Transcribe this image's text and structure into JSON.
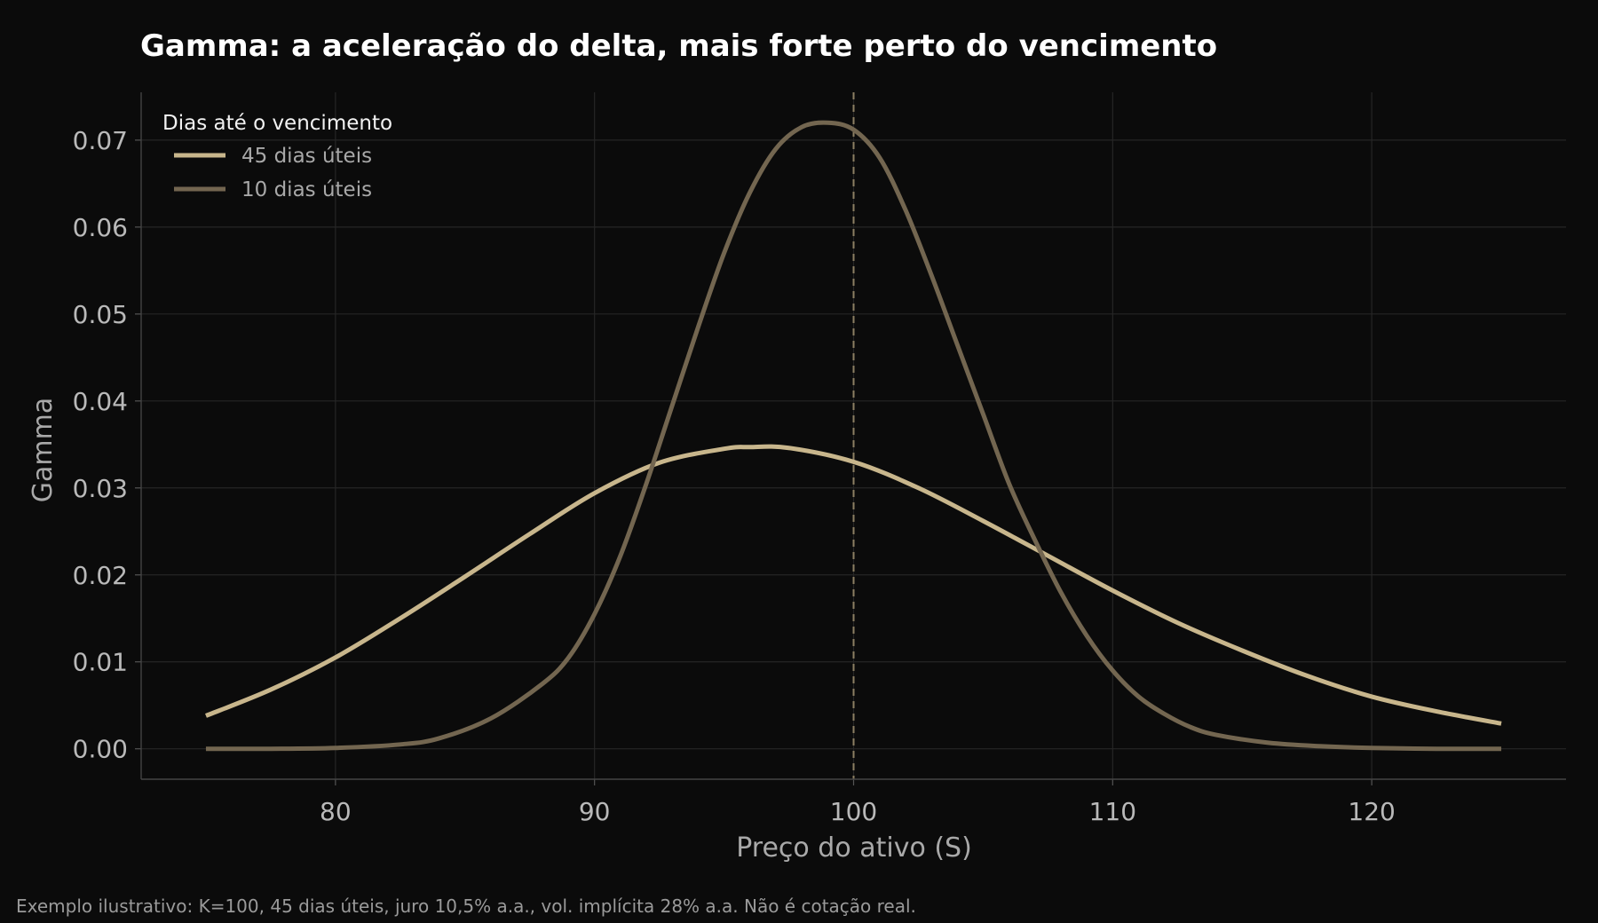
{
  "chart_data": {
    "type": "line",
    "title": "Gamma: a aceleração do delta, mais forte perto do vencimento",
    "xlabel": "Preço do ativo (S)",
    "ylabel": "Gamma",
    "xlim": [
      72.5,
      127.5
    ],
    "ylim": [
      -0.0035,
      0.0755
    ],
    "x_ticks": [
      80,
      90,
      100,
      110,
      120
    ],
    "y_ticks": [
      0.0,
      0.01,
      0.02,
      0.03,
      0.04,
      0.05,
      0.06,
      0.07
    ],
    "x_tick_labels": [
      "80",
      "90",
      "100",
      "110",
      "120"
    ],
    "y_tick_labels": [
      "0.00",
      "0.01",
      "0.02",
      "0.03",
      "0.04",
      "0.05",
      "0.06",
      "0.07"
    ],
    "grid": true,
    "reference_line": {
      "x": 100,
      "style": "dashed"
    },
    "legend": {
      "title": "Dias até o vencimento",
      "placement": "top-left"
    },
    "series": [
      {
        "name": "45 dias úteis",
        "color": "#c8b68c",
        "x": [
          75,
          77.5,
          80,
          82.5,
          85,
          87.5,
          90,
          92.5,
          95,
          96,
          97.5,
          100,
          102.5,
          105,
          107.5,
          110,
          112.5,
          115,
          117.5,
          120,
          122.5,
          125
        ],
        "y": [
          0.0038,
          0.0068,
          0.0105,
          0.015,
          0.0198,
          0.0247,
          0.0294,
          0.0329,
          0.0345,
          0.0347,
          0.0346,
          0.033,
          0.03,
          0.0262,
          0.0222,
          0.0182,
          0.0145,
          0.0113,
          0.0084,
          0.006,
          0.0043,
          0.0029
        ]
      },
      {
        "name": "10 dias úteis",
        "color": "#736650",
        "x": [
          75,
          77.5,
          80,
          82.5,
          84,
          86,
          88,
          89,
          90,
          91,
          92,
          93,
          94,
          95,
          96,
          97,
          98,
          99,
          100,
          101,
          102,
          103,
          104,
          105,
          106,
          107,
          108,
          109,
          110,
          111,
          112,
          113,
          114,
          116,
          118,
          120,
          122.5,
          125
        ],
        "y": [
          0.0,
          0.0,
          0.0001,
          0.0005,
          0.0012,
          0.0035,
          0.0075,
          0.0105,
          0.0155,
          0.0222,
          0.0305,
          0.0395,
          0.0485,
          0.057,
          0.064,
          0.069,
          0.0715,
          0.072,
          0.0712,
          0.068,
          0.062,
          0.0545,
          0.0465,
          0.0385,
          0.0305,
          0.024,
          0.018,
          0.013,
          0.009,
          0.006,
          0.004,
          0.0025,
          0.0016,
          0.0007,
          0.0003,
          0.0001,
          0.0,
          0.0
        ]
      }
    ]
  },
  "footnote": "Exemplo ilustrativo: K=100, 45 dias úteis, juro 10,5% a.a., vol. implícita 28% a.a. Não é cotação real."
}
